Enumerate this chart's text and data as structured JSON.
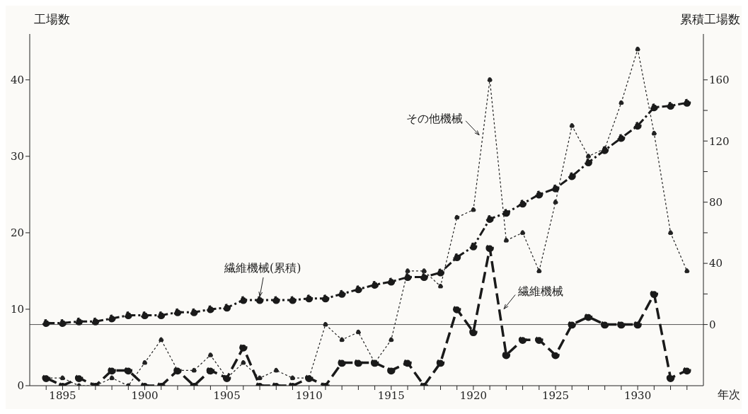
{
  "chart_data": {
    "type": "line",
    "ylabel": "工場数",
    "y2label": "累積工場数",
    "xlabel": "年次",
    "x": [
      1894,
      1895,
      1896,
      1897,
      1898,
      1899,
      1900,
      1901,
      1902,
      1903,
      1904,
      1905,
      1906,
      1907,
      1908,
      1909,
      1910,
      1911,
      1912,
      1913,
      1914,
      1915,
      1916,
      1917,
      1918,
      1919,
      1920,
      1921,
      1922,
      1923,
      1924,
      1925,
      1926,
      1927,
      1928,
      1929,
      1930,
      1931,
      1932,
      1933
    ],
    "series": [
      {
        "name": "その他機械",
        "color": "#222222",
        "line_style": "dotted",
        "values": [
          1,
          1,
          0,
          0,
          1,
          0,
          3,
          6,
          2,
          2,
          4,
          1,
          3,
          1,
          2,
          1,
          1,
          8,
          6,
          7,
          3,
          6,
          15,
          15,
          13,
          22,
          23,
          40,
          19,
          20,
          15,
          24,
          34,
          30,
          31,
          37,
          44,
          33,
          20,
          15
        ]
      },
      {
        "name": "繊維機械",
        "color": "#1a1a1a",
        "line_style": "dashed",
        "values": [
          1,
          0,
          1,
          0,
          2,
          2,
          0,
          0,
          2,
          0,
          2,
          1,
          5,
          0,
          0,
          0,
          1,
          0,
          3,
          3,
          3,
          2,
          3,
          0,
          3,
          10,
          7,
          18,
          4,
          6,
          6,
          4,
          8,
          9,
          8,
          8,
          8,
          12,
          1,
          2
        ]
      },
      {
        "name": "繊維機械(累積)",
        "color": "#1a1a1a",
        "line_style": "dashdot",
        "axis": "y2",
        "values": [
          1,
          1,
          2,
          2,
          4,
          6,
          6,
          6,
          8,
          8,
          10,
          11,
          16,
          16,
          16,
          16,
          17,
          17,
          20,
          23,
          26,
          28,
          31,
          31,
          34,
          44,
          51,
          69,
          73,
          79,
          85,
          89,
          97,
          106,
          114,
          122,
          130,
          142,
          143,
          145
        ]
      }
    ],
    "xlim": [
      1893,
      1934
    ],
    "xticks": [
      {
        "value": 1894,
        "label": null
      },
      1895,
      {
        "value": 1896,
        "label": null
      },
      {
        "value": 1897,
        "label": null
      },
      {
        "value": 1898,
        "label": null
      },
      {
        "value": 1899,
        "label": null
      },
      1900,
      {
        "value": 1901,
        "label": null
      },
      {
        "value": 1902,
        "label": null
      },
      {
        "value": 1903,
        "label": null
      },
      {
        "value": 1904,
        "label": null
      },
      1905,
      {
        "value": 1906,
        "label": null
      },
      {
        "value": 1907,
        "label": null
      },
      {
        "value": 1908,
        "label": null
      },
      {
        "value": 1909,
        "label": null
      },
      1910,
      {
        "value": 1911,
        "label": null
      },
      {
        "value": 1912,
        "label": null
      },
      {
        "value": 1913,
        "label": null
      },
      {
        "value": 1914,
        "label": null
      },
      1915,
      {
        "value": 1916,
        "label": null
      },
      {
        "value": 1917,
        "label": null
      },
      {
        "value": 1918,
        "label": null
      },
      {
        "value": 1919,
        "label": null
      },
      1920,
      {
        "value": 1921,
        "label": null
      },
      {
        "value": 1922,
        "label": null
      },
      {
        "value": 1923,
        "label": null
      },
      {
        "value": 1924,
        "label": null
      },
      1925,
      {
        "value": 1926,
        "label": null
      },
      {
        "value": 1927,
        "label": null
      },
      {
        "value": 1928,
        "label": null
      },
      {
        "value": 1929,
        "label": null
      },
      1930,
      {
        "value": 1931,
        "label": null
      },
      {
        "value": 1932,
        "label": null
      },
      {
        "value": 1933,
        "label": null
      }
    ],
    "ylim": [
      0,
      46
    ],
    "yticks": [
      0,
      10,
      20,
      30,
      40
    ],
    "y2lim": [
      -40,
      190
    ],
    "y2ticks": [
      0,
      {
        "value": 20,
        "label": null
      },
      40,
      {
        "value": 60,
        "label": null
      },
      80,
      {
        "value": 100,
        "label": null
      },
      120,
      {
        "value": 140,
        "label": null
      },
      160
    ],
    "ref_lines": [
      {
        "axis": "y2",
        "value": 0,
        "color": "#555555"
      }
    ],
    "marker": "circle"
  }
}
